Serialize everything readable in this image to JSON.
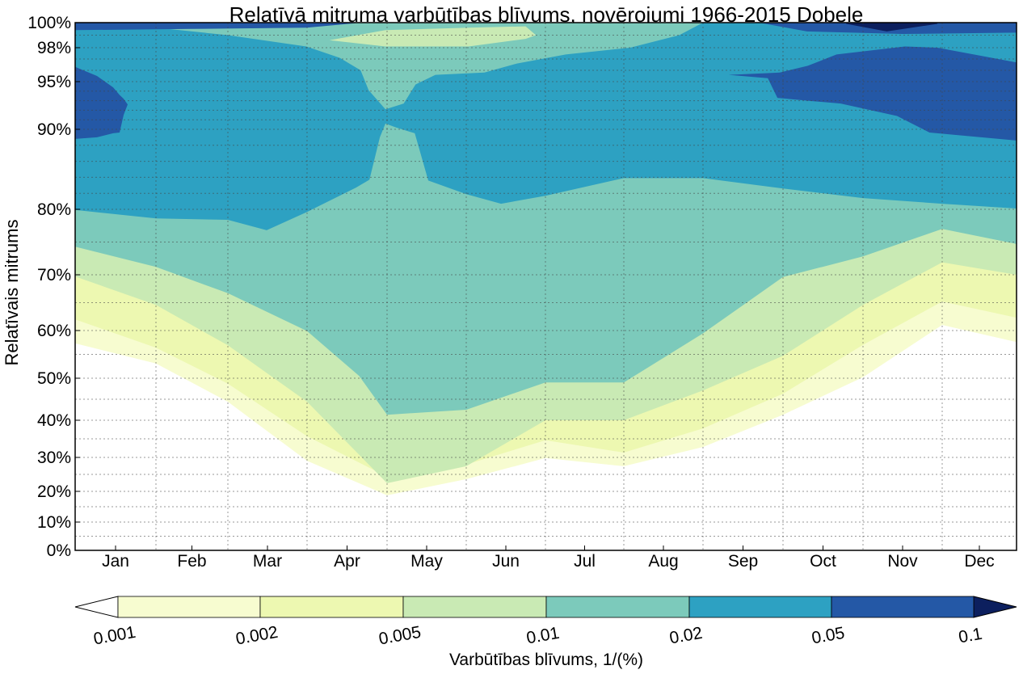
{
  "chart_data": {
    "type": "contourf",
    "title": "Relatīvā mitruma varbūtības blīvums, novērojumi 1966-2015 Dobele",
    "ylabel": "Relatīvais mitrums",
    "xlabel": "",
    "x_unit": "month index (0 = start of Jan, 12 = end of Dec)",
    "xlim": [
      0,
      12
    ],
    "ylim": [
      0,
      100
    ],
    "months": [
      "Jan",
      "Feb",
      "Mar",
      "Apr",
      "May",
      "Jun",
      "Jul",
      "Aug",
      "Sep",
      "Oct",
      "Nov",
      "Dec"
    ],
    "yticks": [
      {
        "value": 0,
        "label": "0%"
      },
      {
        "value": 10,
        "label": "10%"
      },
      {
        "value": 20,
        "label": "20%"
      },
      {
        "value": 30,
        "label": "30%"
      },
      {
        "value": 40,
        "label": "40%"
      },
      {
        "value": 50,
        "label": "50%"
      },
      {
        "value": 60,
        "label": "60%"
      },
      {
        "value": 70,
        "label": "70%"
      },
      {
        "value": 80,
        "label": "80%"
      },
      {
        "value": 90,
        "label": "90%"
      },
      {
        "value": 95,
        "label": "95%"
      },
      {
        "value": 98,
        "label": "98%"
      },
      {
        "value": 100,
        "label": "100%"
      }
    ],
    "minor_grid_values": [
      5,
      15,
      25,
      35,
      45,
      55,
      65,
      75,
      82,
      84,
      86,
      88,
      91,
      92,
      93,
      94,
      96,
      97,
      99
    ],
    "grid": true,
    "colorbar": {
      "label": "Varbūtības blīvums, 1/(%)",
      "placement": "bottom",
      "levels": [
        "0.001",
        "0.002",
        "0.005",
        "0.01",
        "0.02",
        "0.05",
        "0.1"
      ],
      "colors": [
        "#f7fcd0",
        "#edf8b1",
        "#c9eab4",
        "#7ccabb",
        "#2da1c2",
        "#2458a6"
      ],
      "under_color": "#ffffff",
      "over_color": "#0c1f5e"
    },
    "regions": [
      {
        "level": 0.001,
        "color": "#f7fcd0",
        "lower": [
          [
            0,
            57.3
          ],
          [
            1,
            53.1
          ],
          [
            2,
            44.4
          ],
          [
            3,
            29.0
          ],
          [
            4,
            18.7
          ],
          [
            5,
            23.6
          ],
          [
            6,
            29.8
          ],
          [
            7,
            27.4
          ],
          [
            8,
            32.8
          ],
          [
            9,
            41.3
          ],
          [
            10,
            50.2
          ],
          [
            11,
            61.0
          ],
          [
            12,
            57.6
          ]
        ],
        "upper": [
          [
            0,
            100
          ],
          [
            12,
            100
          ]
        ]
      },
      {
        "level": 0.002,
        "color": "#edf8b1",
        "lower": [
          [
            0,
            62.0
          ],
          [
            1,
            56.4
          ],
          [
            2,
            48.7
          ],
          [
            3,
            35.7
          ],
          [
            4,
            24.3
          ],
          [
            5,
            27.9
          ],
          [
            6,
            34.6
          ],
          [
            7,
            31.3
          ],
          [
            8,
            37.8
          ],
          [
            9,
            46.3
          ],
          [
            10,
            57.0
          ],
          [
            11,
            65.2
          ],
          [
            12,
            62.3
          ]
        ],
        "upper": [
          [
            0,
            100
          ],
          [
            12,
            100
          ]
        ]
      },
      {
        "level": 0.005,
        "color": "#c9eab4",
        "lower": [
          [
            0,
            69.7
          ],
          [
            1,
            64.6
          ],
          [
            2,
            56.9
          ],
          [
            3,
            44.4
          ],
          [
            4,
            22.4
          ],
          [
            5,
            27.4
          ],
          [
            6,
            40.0
          ],
          [
            7,
            40.0
          ],
          [
            8,
            47.1
          ],
          [
            9,
            54.7
          ],
          [
            10,
            64.6
          ],
          [
            11,
            71.9
          ],
          [
            12,
            70.0
          ]
        ],
        "upper": [
          [
            0,
            100
          ],
          [
            12,
            100
          ]
        ]
      },
      {
        "level": 0.01,
        "color": "#7ccabb",
        "lower": [
          [
            0,
            74.3
          ],
          [
            1,
            71.2
          ],
          [
            2,
            66.7
          ],
          [
            3,
            59.9
          ],
          [
            3.65,
            50.5
          ],
          [
            4,
            41.3
          ],
          [
            5,
            42.5
          ],
          [
            6,
            49.0
          ],
          [
            7,
            49.0
          ],
          [
            8,
            59.4
          ],
          [
            9,
            69.6
          ],
          [
            10,
            72.8
          ],
          [
            11,
            77.0
          ],
          [
            12,
            74.7
          ]
        ],
        "upper": [
          [
            0,
            100
          ],
          [
            12,
            100
          ]
        ]
      },
      {
        "level": 0.005,
        "color": "#c9eab4",
        "lower": [
          [
            3.28,
            98.6
          ],
          [
            3.98,
            98.1
          ],
          [
            5.03,
            98.1
          ],
          [
            5.75,
            98.7
          ],
          [
            5.88,
            99.0
          ]
        ],
        "upper": [
          [
            3.28,
            98.6
          ],
          [
            3.98,
            99.4
          ],
          [
            5.03,
            99.6
          ],
          [
            5.75,
            99.7
          ],
          [
            5.88,
            99.0
          ]
        ]
      },
      {
        "level": 0.02,
        "color": "#2da1c2",
        "lower": [
          [
            0,
            79.9
          ],
          [
            1,
            78.6
          ],
          [
            2,
            78.4
          ],
          [
            2.49,
            76.8
          ],
          [
            3,
            79.6
          ],
          [
            3.61,
            82.7
          ],
          [
            3.78,
            83.7
          ],
          [
            3.91,
            89.0
          ],
          [
            3.98,
            90.6
          ],
          [
            4.11,
            90.2
          ],
          [
            4.35,
            89.5
          ],
          [
            4.52,
            83.6
          ],
          [
            5,
            81.9
          ],
          [
            5.44,
            80.7
          ],
          [
            6,
            81.7
          ],
          [
            7,
            83.9
          ],
          [
            8,
            83.9
          ],
          [
            9,
            82.6
          ],
          [
            10,
            81.4
          ],
          [
            11,
            80.7
          ],
          [
            12,
            80.1
          ]
        ],
        "upper": [
          [
            0,
            100
          ],
          [
            1,
            99.6
          ],
          [
            2,
            99.0
          ],
          [
            2.99,
            98.1
          ],
          [
            3.41,
            97.1
          ],
          [
            3.67,
            96.0
          ],
          [
            3.77,
            94.1
          ],
          [
            3.98,
            92.1
          ],
          [
            4.21,
            92.7
          ],
          [
            4.36,
            94.7
          ],
          [
            4.61,
            95.6
          ],
          [
            5.23,
            95.8
          ],
          [
            5.64,
            96.6
          ],
          [
            6.26,
            97.4
          ],
          [
            7.08,
            98.0
          ],
          [
            7.7,
            99.0
          ],
          [
            8.0,
            100
          ],
          [
            12,
            100
          ]
        ]
      },
      {
        "level": 0.05,
        "color": "#2458a6",
        "lower": [
          [
            0,
            88.8
          ],
          [
            0.27,
            89.0
          ],
          [
            0.47,
            89.5
          ],
          [
            0.55,
            89.6
          ],
          [
            0.6,
            91.5
          ],
          [
            0.65,
            92.6
          ]
        ],
        "upper": [
          [
            0,
            96.3
          ],
          [
            0.27,
            95.5
          ],
          [
            0.47,
            94.4
          ],
          [
            0.55,
            93.6
          ],
          [
            0.6,
            93.2
          ],
          [
            0.65,
            92.6
          ]
        ]
      },
      {
        "level": 0.05,
        "color": "#2458a6",
        "lower": [
          [
            8.32,
            95.6
          ],
          [
            8.81,
            95.3
          ],
          [
            8.93,
            93.3
          ],
          [
            9.31,
            93.0
          ],
          [
            9.72,
            92.7
          ],
          [
            10.43,
            91.4
          ],
          [
            10.84,
            89.6
          ],
          [
            12,
            88.6
          ]
        ],
        "upper": [
          [
            8.32,
            95.6
          ],
          [
            8.81,
            95.75
          ],
          [
            8.96,
            95.8
          ],
          [
            9.31,
            96.4
          ],
          [
            9.67,
            97.4
          ],
          [
            10.53,
            98.1
          ],
          [
            10.94,
            98.0
          ],
          [
            12,
            96.7
          ]
        ]
      },
      {
        "level": 0.05,
        "color": "#2458a6",
        "lower": [
          [
            0,
            99.4
          ],
          [
            1.5,
            99.5
          ],
          [
            3,
            99.6
          ],
          [
            3.6,
            99.95
          ]
        ],
        "upper": [
          [
            0,
            100
          ],
          [
            3.6,
            100
          ]
        ]
      },
      {
        "level": 0.05,
        "color": "#2458a6",
        "lower": [
          [
            8.74,
            99.95
          ],
          [
            9.3,
            99.3
          ],
          [
            10.5,
            99.1
          ],
          [
            12,
            99.2
          ]
        ],
        "upper": [
          [
            8.74,
            100
          ],
          [
            12,
            100
          ]
        ]
      },
      {
        "level": 0.1,
        "color": "#0c1f5e",
        "lower": [
          [
            9.79,
            99.9
          ],
          [
            10.3,
            99.3
          ],
          [
            10.94,
            99.9
          ]
        ],
        "upper": [
          [
            9.79,
            100
          ],
          [
            10.94,
            100
          ]
        ]
      }
    ]
  }
}
